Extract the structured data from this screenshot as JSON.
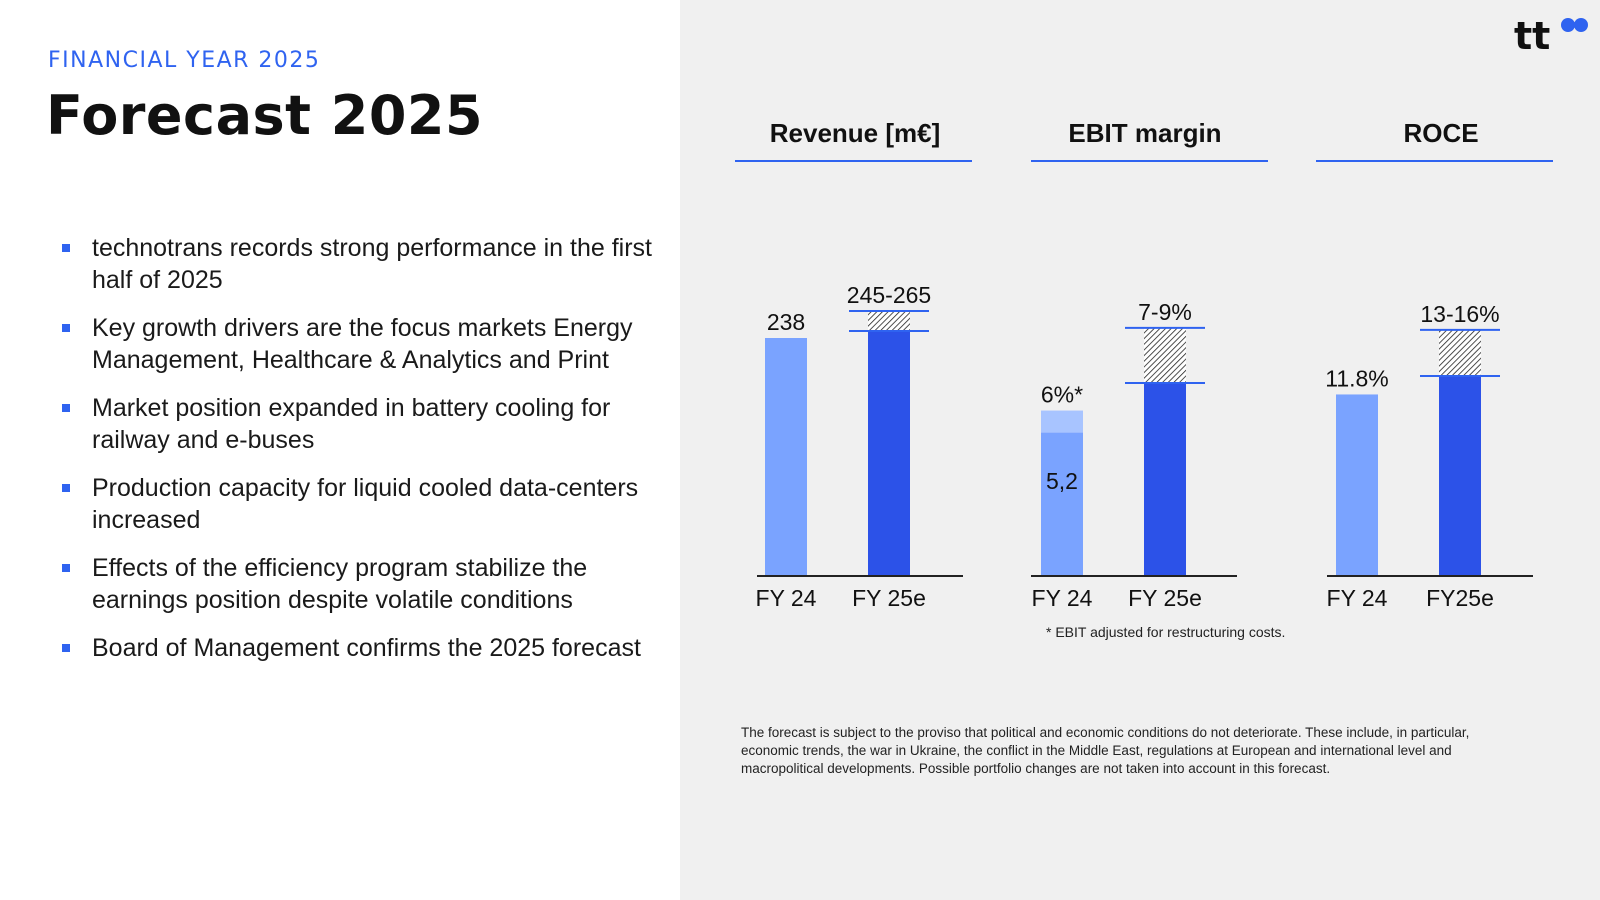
{
  "header": {
    "eyebrow": "FINANCIAL YEAR 2025",
    "title": "Forecast 2025"
  },
  "bullets": [
    "technotrans records strong performance in the first half of 2025",
    "Key growth drivers are the focus markets Energy Management, Healthcare & Analytics and Print",
    "Market position expanded in battery cooling for railway and e-buses",
    "Production capacity for liquid cooled data-centers increased",
    "Effects of the efficiency program stabilize the earnings position despite volatile conditions",
    "Board of Management confirms the 2025 forecast"
  ],
  "logo": {
    "text": "tt",
    "icon": "infinity-logo-icon"
  },
  "colors": {
    "accent": "#2f63f0",
    "bar_fy24": "#7aa3ff",
    "bar_fy24_light": "#a8c4ff",
    "bar_fy25": "#2c52e8",
    "axis": "#222222"
  },
  "chart_data": [
    {
      "type": "bar",
      "title": "Revenue [m€]",
      "categories": [
        "FY 24",
        "FY 25e"
      ],
      "values": [
        238,
        245
      ],
      "range_high": [
        null,
        265
      ],
      "value_labels": [
        "238",
        "245-265"
      ],
      "ylim": [
        0,
        340
      ]
    },
    {
      "type": "bar",
      "title": "EBIT margin",
      "categories": [
        "FY 24",
        "FY 25e"
      ],
      "values": [
        6,
        7
      ],
      "range_high": [
        null,
        9
      ],
      "base_value": [
        5.2,
        null
      ],
      "value_labels": [
        "6%*",
        "7-9%"
      ],
      "inner_label": "5,2",
      "ylim": [
        0,
        12.33
      ]
    },
    {
      "type": "bar",
      "title": "ROCE",
      "categories": [
        "FY 24",
        "FY25e"
      ],
      "values": [
        11.8,
        13
      ],
      "range_high": [
        null,
        16
      ],
      "value_labels": [
        "11.8%",
        "13-16%"
      ],
      "ylim": [
        0,
        22.1
      ]
    }
  ],
  "footnote": "* EBIT adjusted for restructuring costs.",
  "disclaimer": "The forecast is subject to the proviso that political and economic conditions do not deteriorate. These include, in particular, economic trends, the war in Ukraine, the conflict in the Middle East, regulations at European and international level and macropolitical developments. Possible portfolio changes are not taken into account in this forecast."
}
